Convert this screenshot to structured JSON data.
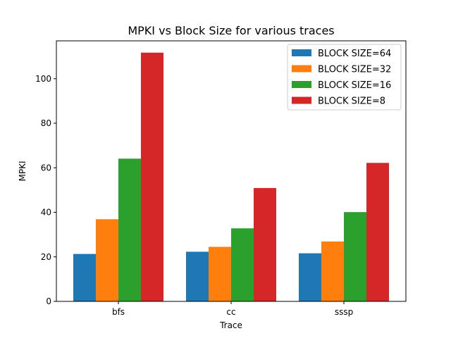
{
  "chart_data": {
    "type": "bar",
    "title": "MPKI vs Block Size for various traces",
    "xlabel": "Trace",
    "ylabel": "MPKI",
    "categories": [
      "bfs",
      "cc",
      "sssp"
    ],
    "ylim": [
      0,
      117
    ],
    "yticks": [
      0,
      20,
      40,
      60,
      80,
      100
    ],
    "legend_position": "top-right",
    "grid": false,
    "series": [
      {
        "name": "BLOCK SIZE=64",
        "color": "#1f77b4",
        "values": [
          21.3,
          22.3,
          21.6
        ]
      },
      {
        "name": "BLOCK SIZE=32",
        "color": "#ff7f0e",
        "values": [
          36.9,
          24.5,
          26.9
        ]
      },
      {
        "name": "BLOCK SIZE=16",
        "color": "#2ca02c",
        "values": [
          64.1,
          32.8,
          40.1
        ]
      },
      {
        "name": "BLOCK SIZE=8",
        "color": "#d62728",
        "values": [
          111.7,
          50.9,
          62.2
        ]
      }
    ]
  }
}
